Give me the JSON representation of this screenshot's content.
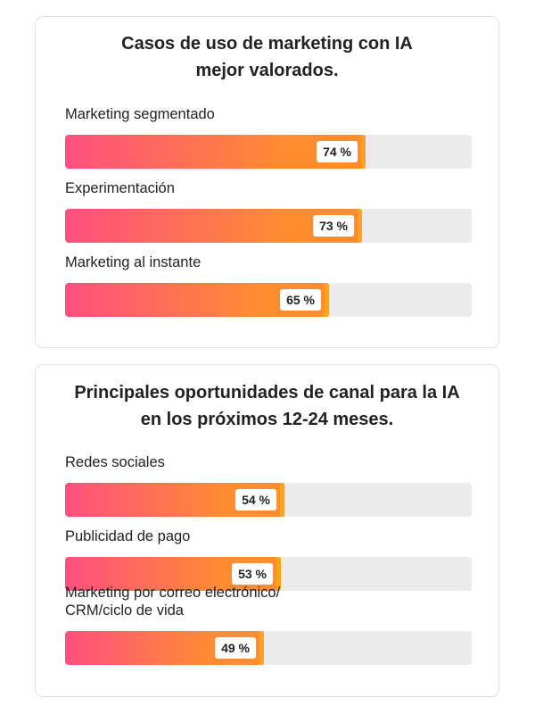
{
  "chart_data": [
    {
      "type": "bar",
      "orientation": "horizontal",
      "title_lines": [
        "Casos de uso de marketing con IA",
        "mejor valorados."
      ],
      "categories": [
        [
          "Marketing segmentado"
        ],
        [
          "Experimentación"
        ],
        [
          "Marketing al instante"
        ]
      ],
      "values": [
        74,
        73,
        65
      ],
      "value_labels": [
        "74 %",
        "73 %",
        "65 %"
      ],
      "xlim": [
        0,
        100
      ],
      "grid": false,
      "legend": "none"
    },
    {
      "type": "bar",
      "orientation": "horizontal",
      "title_lines": [
        "Principales oportunidades de canal para la IA",
        "en los próximos 12-24 meses."
      ],
      "categories": [
        [
          "Redes sociales"
        ],
        [
          "Publicidad de pago"
        ],
        [
          "Marketing por correo electrónico/",
          "CRM/ciclo de vida"
        ]
      ],
      "values": [
        54,
        53,
        49
      ],
      "value_labels": [
        "54 %",
        "53 %",
        "49 %"
      ],
      "xlim": [
        0,
        100
      ],
      "grid": false,
      "legend": "none"
    }
  ],
  "colors": {
    "gradient_start": "#ff4f80",
    "gradient_end": "#ff8d30",
    "fill_border": "#ffa21c",
    "track": "#ebebeb"
  }
}
